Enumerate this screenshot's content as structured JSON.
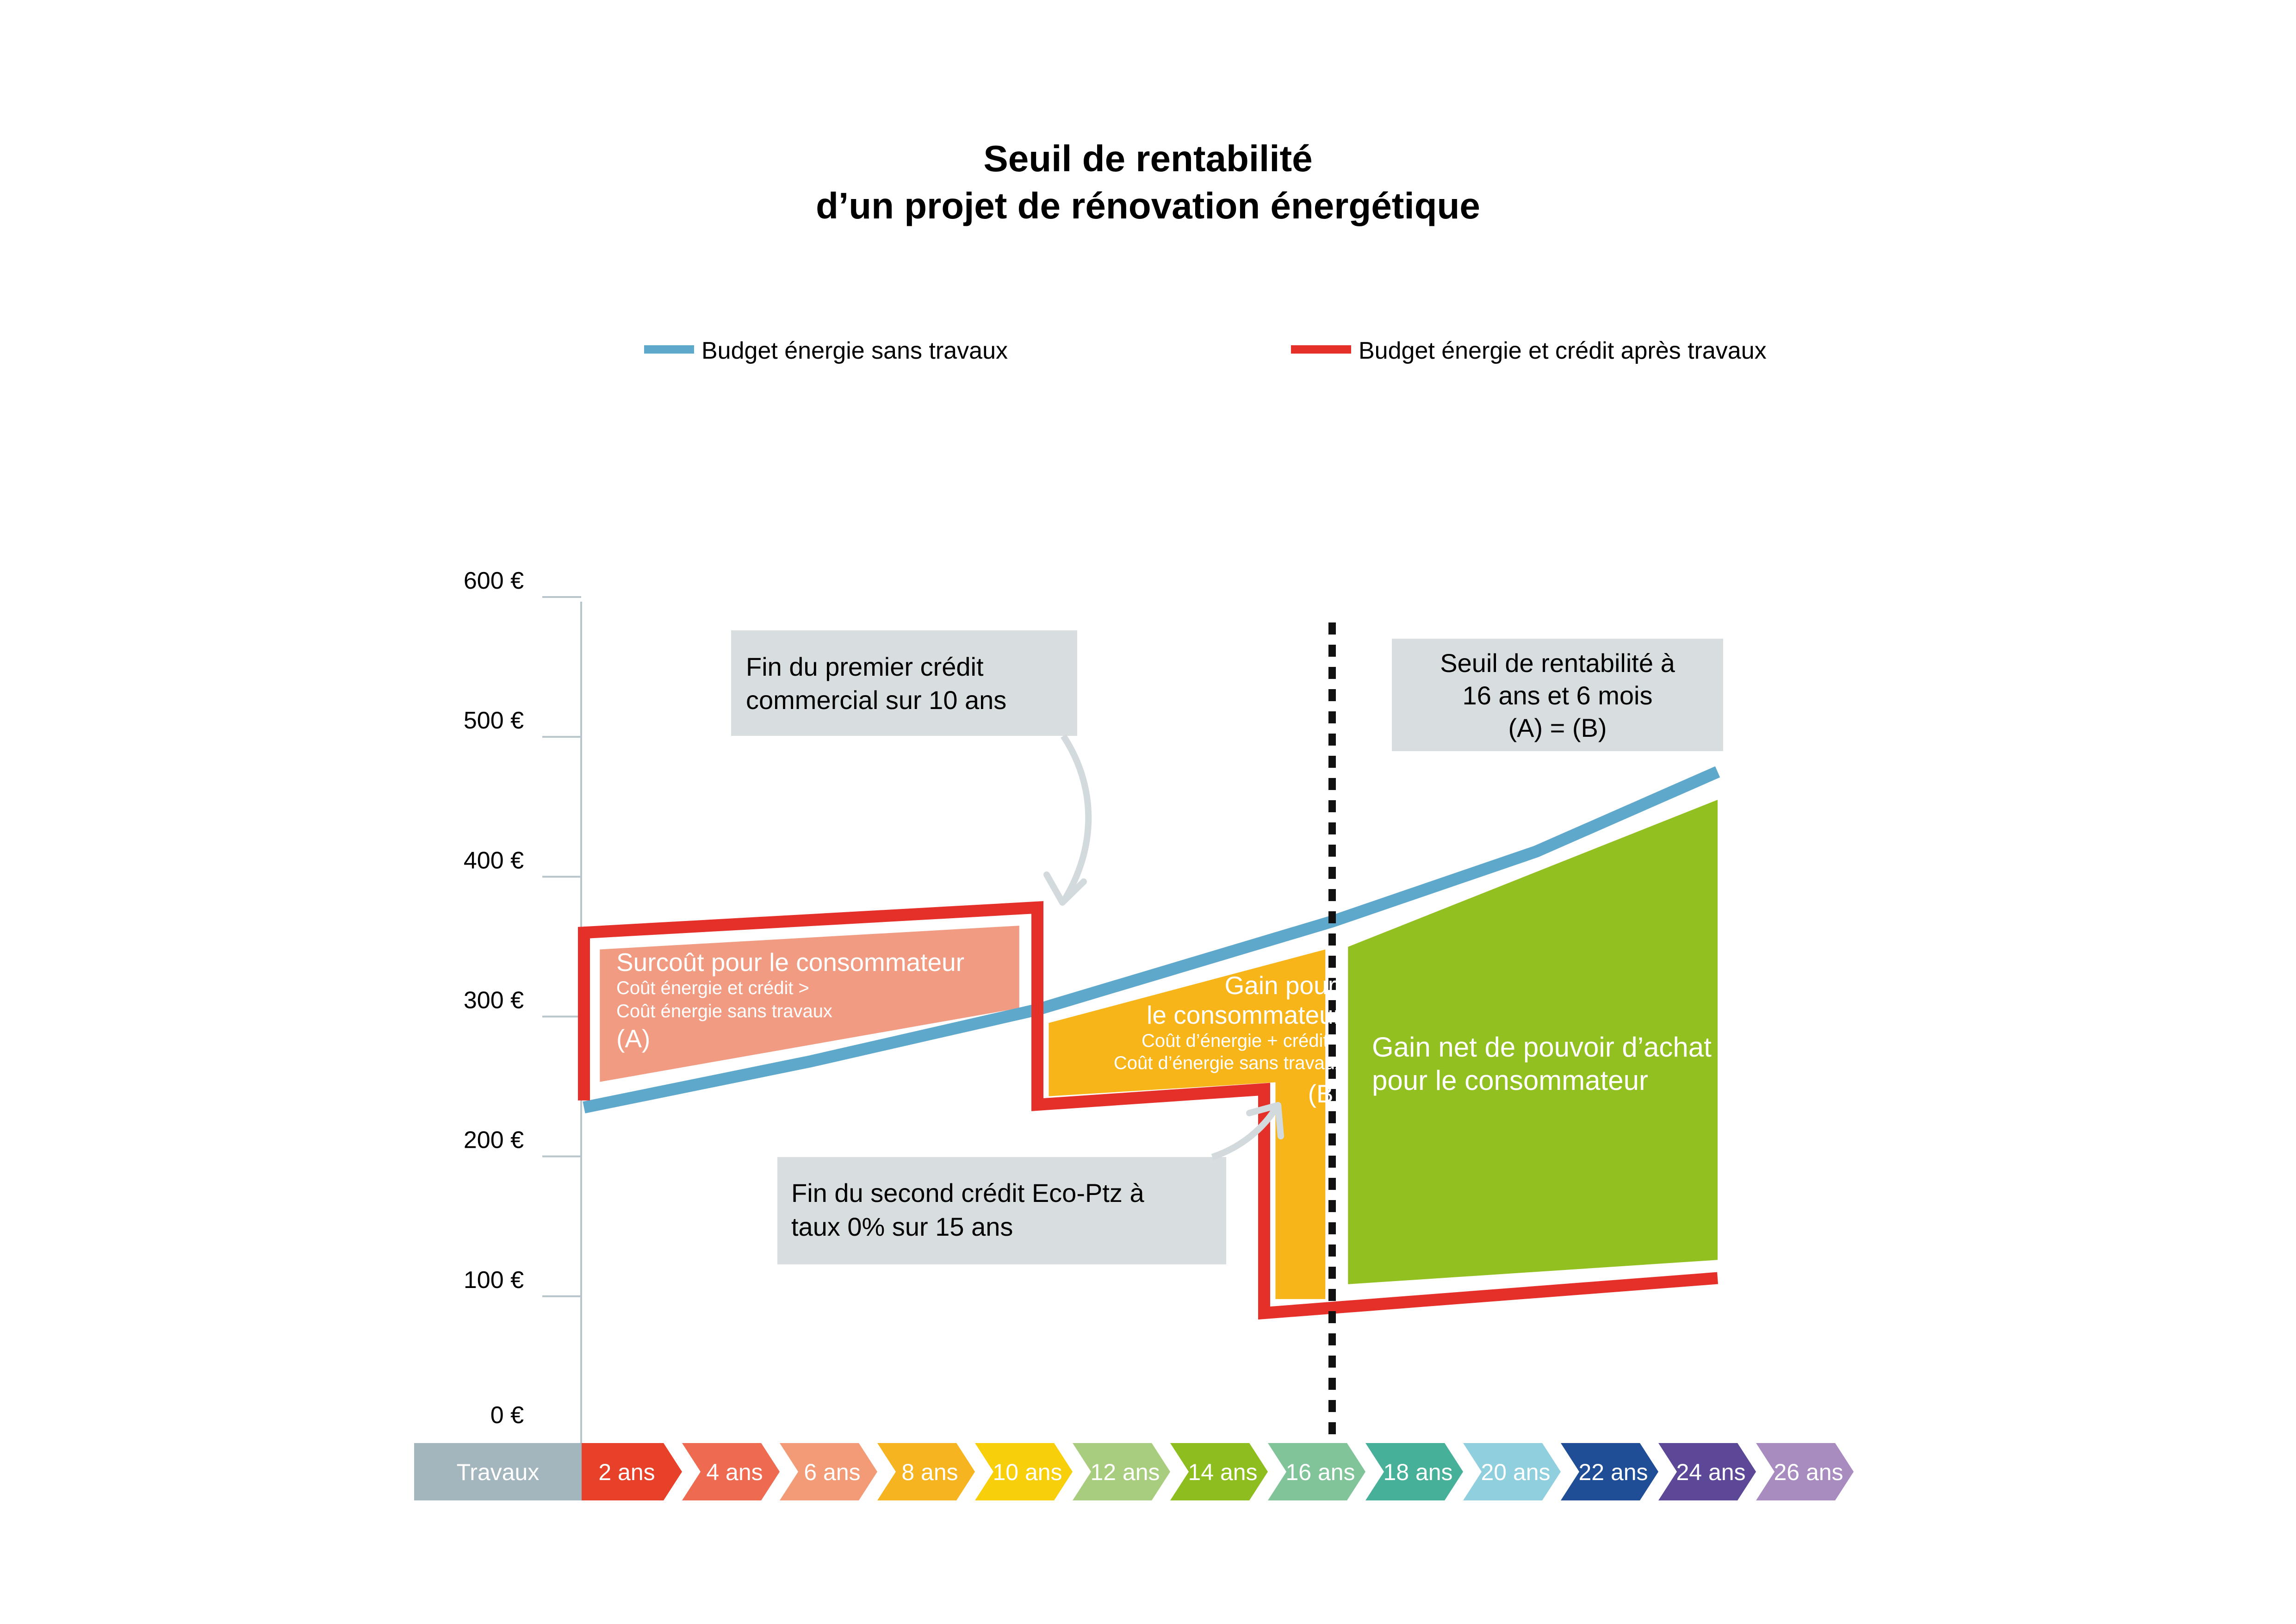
{
  "title": {
    "line1": "Seuil de rentabilité",
    "line2": "d’un projet de rénovation énergétique"
  },
  "legend": [
    {
      "label": "Budget énergie sans travaux",
      "color": "#5ea8cc"
    },
    {
      "label": "Budget énergie et crédit après travaux",
      "color": "#e5302a"
    }
  ],
  "callouts": {
    "first_credit": [
      "Fin du premier crédit",
      "commercial sur 10 ans"
    ],
    "second_credit": [
      "Fin du second crédit Eco-Ptz à",
      "taux 0% sur 15 ans"
    ],
    "break_even": [
      "Seuil de rentabilité à",
      "16 ans et 6 mois",
      "(A) = (B)"
    ]
  },
  "zones": {
    "surcout": {
      "title": "Surcoût pour le consommateur",
      "sub1": "Coût énergie et crédit >",
      "sub2": "Coût énergie sans travaux",
      "tag": "(A)",
      "color": "#f19b82"
    },
    "gain": {
      "title1": "Gain pour",
      "title2": "le consommateur",
      "sub1": "Coût d’énergie + crédit <",
      "sub2": "Coût d’énergie sans travaux",
      "tag": "(B)",
      "color": "#f7b519"
    },
    "gain_net": {
      "line1": "Gain net de pouvoir d’achat",
      "line2": "pour le consommateur",
      "color": "#92c021"
    }
  },
  "timeline": {
    "start_label": "Travaux",
    "start_color": "#a3b5bd",
    "segments": [
      {
        "label": "2 ans",
        "color": "#e8412a"
      },
      {
        "label": "4 ans",
        "color": "#ee6a50"
      },
      {
        "label": "6 ans",
        "color": "#f39a76"
      },
      {
        "label": "8 ans",
        "color": "#f6b520"
      },
      {
        "label": "10 ans",
        "color": "#f7cf0a"
      },
      {
        "label": "12 ans",
        "color": "#a9cd7e"
      },
      {
        "label": "14 ans",
        "color": "#8dbd1e"
      },
      {
        "label": "16 ans",
        "color": "#82c49a"
      },
      {
        "label": "18 ans",
        "color": "#46b098"
      },
      {
        "label": "20 ans",
        "color": "#90d0de"
      },
      {
        "label": "22 ans",
        "color": "#1f4e96"
      },
      {
        "label": "24 ans",
        "color": "#5d4898"
      },
      {
        "label": "26 ans",
        "color": "#a88cc0"
      }
    ]
  },
  "chart_data": {
    "type": "line",
    "title": "Seuil de rentabilité d’un projet de rénovation énergétique",
    "xlabel": "",
    "ylabel": "",
    "y_ticks": [
      "600 €",
      "500 €",
      "400 €",
      "300 €",
      "200 €",
      "100 €",
      "0 €"
    ],
    "y_tick_values": [
      600,
      500,
      400,
      300,
      200,
      100,
      0
    ],
    "ylim": [
      0,
      600
    ],
    "xlim": [
      0,
      26
    ],
    "break_even_year": 16.5,
    "series": [
      {
        "name": "Budget énergie sans travaux",
        "color": "#5ea8cc",
        "points": [
          [
            0,
            235
          ],
          [
            5,
            268
          ],
          [
            10,
            305
          ],
          [
            16.5,
            368
          ],
          [
            21,
            418
          ],
          [
            25,
            475
          ]
        ]
      },
      {
        "name": "Budget énergie et crédit après travaux",
        "color": "#e5302a",
        "points": [
          [
            0,
            240
          ],
          [
            0,
            360
          ],
          [
            10,
            378
          ],
          [
            10,
            237
          ],
          [
            15,
            248
          ],
          [
            15,
            88
          ],
          [
            25,
            113
          ]
        ]
      }
    ]
  }
}
